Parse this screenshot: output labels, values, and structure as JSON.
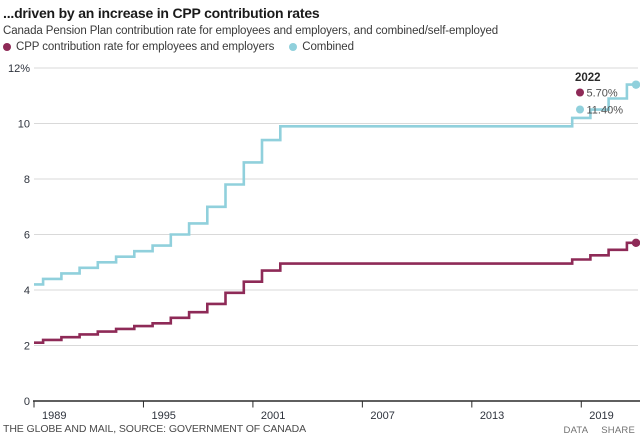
{
  "header": {
    "title": "...driven by an increase in CPP contribution rates",
    "subtitle": "Canada Pension Plan contribution rate for employees and employers, and combined/self-employed"
  },
  "legend": [
    {
      "label": "CPP contribution rate for employees and employers",
      "color": "#8E2A57"
    },
    {
      "label": "Combined",
      "color": "#90D0DC"
    }
  ],
  "colors": {
    "employee_line": "#8E2A57",
    "combined_line": "#90D0DC",
    "gridline": "#d9d9d9",
    "axis": "#2a2a2a",
    "tick_label": "#2e333d",
    "annotation_title": "#2b2b2b",
    "annotation_value": "#4f4f4f"
  },
  "chart_data": {
    "type": "line",
    "line_style": "step",
    "title": "...driven by an increase in CPP contribution rates",
    "xlabel": "",
    "ylabel": "",
    "x_range": [
      1989,
      2022
    ],
    "ylim": [
      0,
      12
    ],
    "grid": true,
    "legend_position": "top-left",
    "xticks": [
      1989,
      1995,
      2001,
      2007,
      2013,
      2019
    ],
    "yticks": [
      {
        "value": 0,
        "label": "0"
      },
      {
        "value": 2,
        "label": "2"
      },
      {
        "value": 4,
        "label": "4"
      },
      {
        "value": 6,
        "label": "6"
      },
      {
        "value": 8,
        "label": "8"
      },
      {
        "value": 10,
        "label": "10"
      },
      {
        "value": 12,
        "label": "12%"
      }
    ],
    "x": [
      1989,
      1990,
      1991,
      1992,
      1993,
      1994,
      1995,
      1996,
      1997,
      1998,
      1999,
      2000,
      2001,
      2002,
      2003,
      2004,
      2005,
      2006,
      2007,
      2008,
      2009,
      2010,
      2011,
      2012,
      2013,
      2014,
      2015,
      2016,
      2017,
      2018,
      2019,
      2020,
      2021,
      2022
    ],
    "series": [
      {
        "name": "Combined",
        "color": "#90D0DC",
        "values": [
          4.2,
          4.4,
          4.6,
          4.8,
          5.0,
          5.2,
          5.4,
          5.6,
          6.0,
          6.4,
          7.0,
          7.8,
          8.6,
          9.4,
          9.9,
          9.9,
          9.9,
          9.9,
          9.9,
          9.9,
          9.9,
          9.9,
          9.9,
          9.9,
          9.9,
          9.9,
          9.9,
          9.9,
          9.9,
          9.9,
          10.2,
          10.5,
          10.9,
          11.4
        ]
      },
      {
        "name": "CPP contribution rate for employees and employers",
        "color": "#8E2A57",
        "values": [
          2.1,
          2.2,
          2.3,
          2.4,
          2.5,
          2.6,
          2.7,
          2.8,
          3.0,
          3.2,
          3.5,
          3.9,
          4.3,
          4.7,
          4.95,
          4.95,
          4.95,
          4.95,
          4.95,
          4.95,
          4.95,
          4.95,
          4.95,
          4.95,
          4.95,
          4.95,
          4.95,
          4.95,
          4.95,
          4.95,
          5.1,
          5.25,
          5.45,
          5.7
        ]
      }
    ],
    "annotation": {
      "year_label": "2022",
      "rows": [
        {
          "value": "5.70%",
          "color": "#8E2A57"
        },
        {
          "value": "11.40%",
          "color": "#90D0DC"
        }
      ]
    }
  },
  "footer": {
    "source": "THE GLOBE AND MAIL, SOURCE: GOVERNMENT OF CANADA",
    "actions": [
      "DATA",
      "SHARE"
    ]
  }
}
